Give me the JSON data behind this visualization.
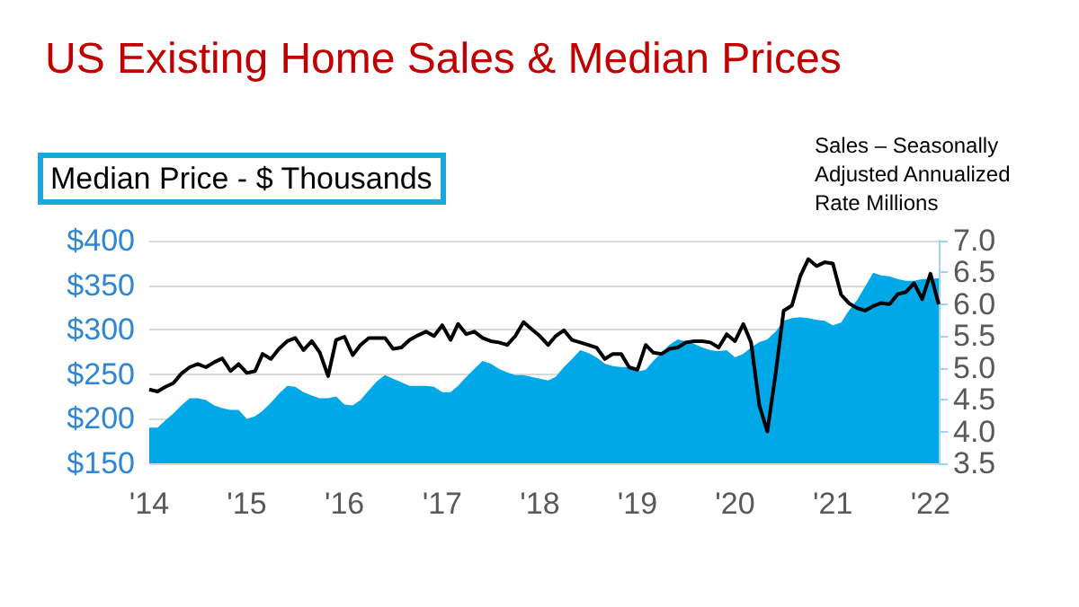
{
  "chart_data": {
    "type": "area",
    "title": "US Existing Home Sales & Median Prices",
    "ylabel": "Median Price - $ Thousands",
    "y2label": "Sales – Seasonally Adjusted Annualized Rate Millions",
    "x": [
      "2014-01",
      "2014-02",
      "2014-03",
      "2014-04",
      "2014-05",
      "2014-06",
      "2014-07",
      "2014-08",
      "2014-09",
      "2014-10",
      "2014-11",
      "2014-12",
      "2015-01",
      "2015-02",
      "2015-03",
      "2015-04",
      "2015-05",
      "2015-06",
      "2015-07",
      "2015-08",
      "2015-09",
      "2015-10",
      "2015-11",
      "2015-12",
      "2016-01",
      "2016-02",
      "2016-03",
      "2016-04",
      "2016-05",
      "2016-06",
      "2016-07",
      "2016-08",
      "2016-09",
      "2016-10",
      "2016-11",
      "2016-12",
      "2017-01",
      "2017-02",
      "2017-03",
      "2017-04",
      "2017-05",
      "2017-06",
      "2017-07",
      "2017-08",
      "2017-09",
      "2017-10",
      "2017-11",
      "2017-12",
      "2018-01",
      "2018-02",
      "2018-03",
      "2018-04",
      "2018-05",
      "2018-06",
      "2018-07",
      "2018-08",
      "2018-09",
      "2018-10",
      "2018-11",
      "2018-12",
      "2019-01",
      "2019-02",
      "2019-03",
      "2019-04",
      "2019-05",
      "2019-06",
      "2019-07",
      "2019-08",
      "2019-09",
      "2019-10",
      "2019-11",
      "2019-12",
      "2020-01",
      "2020-02",
      "2020-03",
      "2020-04",
      "2020-05",
      "2020-06",
      "2020-07",
      "2020-08",
      "2020-09",
      "2020-10",
      "2020-11",
      "2020-12",
      "2021-01",
      "2021-02",
      "2021-03",
      "2021-04",
      "2021-05",
      "2021-06",
      "2021-07",
      "2021-08",
      "2021-09",
      "2021-10",
      "2021-11",
      "2021-12",
      "2022-01",
      "2022-02"
    ],
    "series": [
      {
        "color": "#00a8e8",
        "values": [
          190,
          190,
          198,
          206,
          215,
          223,
          223,
          221,
          215,
          212,
          210,
          210,
          200,
          203,
          209,
          218,
          228,
          237,
          236,
          230,
          226,
          223,
          223,
          225,
          216,
          215,
          221,
          232,
          242,
          249,
          245,
          241,
          237,
          237,
          237,
          236,
          230,
          230,
          237,
          247,
          256,
          265,
          262,
          256,
          252,
          249,
          249,
          247,
          245,
          243,
          247,
          258,
          267,
          277,
          274,
          269,
          262,
          259,
          258,
          258,
          253,
          255,
          265,
          274,
          283,
          289,
          287,
          284,
          280,
          277,
          276,
          277,
          269,
          273,
          280,
          286,
          289,
          298,
          310,
          313,
          314,
          313,
          311,
          310,
          305,
          308,
          321,
          333,
          348,
          364,
          361,
          360,
          357,
          355,
          355,
          357,
          357,
          358
        ]
      },
      {
        "type": "line",
        "axis": "y2",
        "color": "#000000",
        "values": [
          4.66,
          4.63,
          4.7,
          4.76,
          4.91,
          5.01,
          5.06,
          5.01,
          5.09,
          5.15,
          4.95,
          5.06,
          4.92,
          4.95,
          5.22,
          5.14,
          5.3,
          5.42,
          5.47,
          5.28,
          5.42,
          5.24,
          4.87,
          5.44,
          5.49,
          5.2,
          5.36,
          5.47,
          5.47,
          5.47,
          5.3,
          5.32,
          5.44,
          5.51,
          5.57,
          5.5,
          5.67,
          5.44,
          5.69,
          5.53,
          5.57,
          5.47,
          5.42,
          5.4,
          5.36,
          5.5,
          5.72,
          5.61,
          5.5,
          5.36,
          5.5,
          5.59,
          5.44,
          5.4,
          5.36,
          5.32,
          5.14,
          5.22,
          5.22,
          5.01,
          4.97,
          5.36,
          5.24,
          5.22,
          5.3,
          5.32,
          5.4,
          5.42,
          5.42,
          5.4,
          5.32,
          5.53,
          5.42,
          5.69,
          5.4,
          4.41,
          4.0,
          4.91,
          5.9,
          5.98,
          6.44,
          6.71,
          6.6,
          6.66,
          6.64,
          6.15,
          6.02,
          5.94,
          5.9,
          5.97,
          6.02,
          6.0,
          6.16,
          6.19,
          6.33,
          6.08,
          6.48,
          6.0
        ]
      }
    ],
    "xlim": [
      "2014-01",
      "2022-02"
    ],
    "xticks": [
      {
        "value": "2014-01",
        "label": "'14"
      },
      {
        "value": "2015-01",
        "label": "'15"
      },
      {
        "value": "2016-01",
        "label": "'16"
      },
      {
        "value": "2017-01",
        "label": "'17"
      },
      {
        "value": "2018-01",
        "label": "'18"
      },
      {
        "value": "2019-01",
        "label": "'19"
      },
      {
        "value": "2020-01",
        "label": "'20"
      },
      {
        "value": "2021-01",
        "label": "'21"
      },
      {
        "value": "2022-01",
        "label": "'22"
      }
    ],
    "ylim": [
      150,
      400
    ],
    "yticks": [
      {
        "value": 150,
        "label": "$150"
      },
      {
        "value": 200,
        "label": "$200"
      },
      {
        "value": 250,
        "label": "$250"
      },
      {
        "value": 300,
        "label": "$300"
      },
      {
        "value": 350,
        "label": "$350"
      },
      {
        "value": 400,
        "label": "$400"
      }
    ],
    "y2lim": [
      3.5,
      7
    ],
    "y2ticks": [
      {
        "value": 3.5,
        "label": "3.5"
      },
      {
        "value": 4,
        "label": "4.0"
      },
      {
        "value": 4.5,
        "label": "4.5"
      },
      {
        "value": 5,
        "label": "5.0"
      },
      {
        "value": 5.5,
        "label": "5.5"
      },
      {
        "value": 6,
        "label": "6.0"
      },
      {
        "value": 6.5,
        "label": "6.5"
      },
      {
        "value": 7,
        "label": "7.0"
      }
    ],
    "grid": "y",
    "marker": "none",
    "line_style": "solid"
  }
}
